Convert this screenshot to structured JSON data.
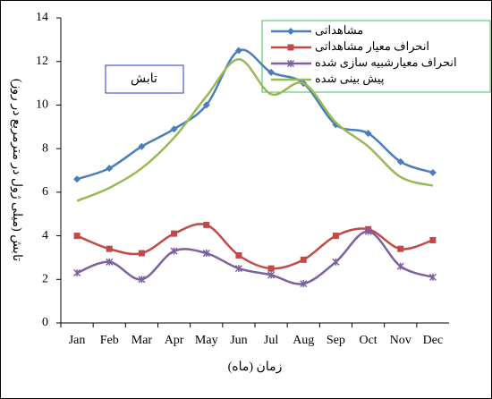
{
  "chart_data": {
    "type": "line",
    "title": "تابش",
    "y_label": "تابش (میلی ژول در مترمربع در روز)",
    "x_label": "زمان (ماه)",
    "categories": [
      "Jan",
      "Feb",
      "Mar",
      "Apr",
      "May",
      "Jun",
      "Jul",
      "Aug",
      "Sep",
      "Oct",
      "Nov",
      "Dec"
    ],
    "series": [
      {
        "name": "مشاهداتی",
        "color": "#4a7ebb",
        "marker": "diamond",
        "values": [
          6.6,
          7.1,
          8.1,
          8.9,
          10.0,
          12.5,
          11.5,
          11.0,
          9.1,
          8.7,
          7.4,
          6.9
        ]
      },
      {
        "name": "انحراف معیار مشاهداتی",
        "color": "#be4b48",
        "marker": "square",
        "values": [
          4.0,
          3.4,
          3.2,
          4.1,
          4.5,
          3.1,
          2.5,
          2.9,
          4.0,
          4.3,
          3.4,
          3.8
        ]
      },
      {
        "name": "انحراف معیارشبیه سازی شده",
        "color": "#7d60a0",
        "marker": "star",
        "values": [
          2.3,
          2.8,
          2.0,
          3.3,
          3.2,
          2.5,
          2.2,
          1.8,
          2.8,
          4.2,
          2.6,
          2.1
        ]
      },
      {
        "name": "پیش بینی شده",
        "color": "#98b954",
        "marker": "none",
        "values": [
          5.6,
          6.2,
          7.1,
          8.5,
          10.4,
          12.1,
          10.5,
          11.0,
          9.2,
          8.1,
          6.7,
          6.3
        ]
      }
    ],
    "ylim": [
      0,
      14
    ],
    "yticks": [
      0,
      2,
      4,
      6,
      8,
      10,
      12,
      14
    ],
    "smooth": true
  }
}
